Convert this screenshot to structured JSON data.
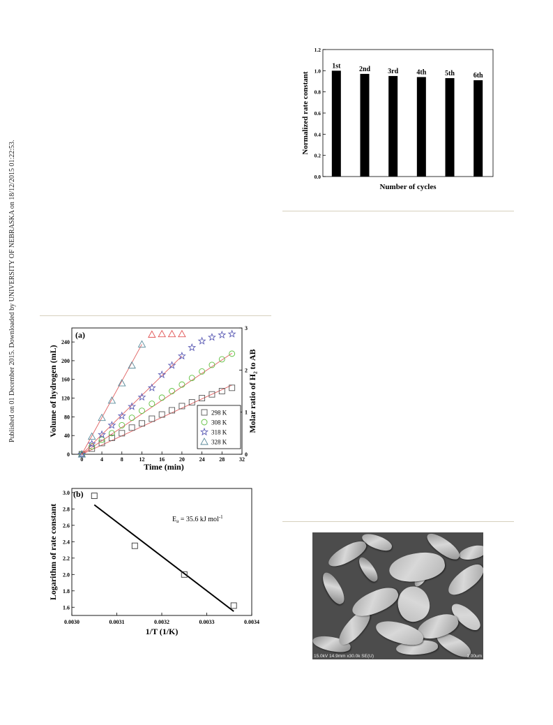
{
  "sidebar": {
    "text": "Published on 01 December 2015. Downloaded by UNIVERSITY OF NEBRASKA on 18/12/2015 01:22:53."
  },
  "chart_data": [
    {
      "type": "bar",
      "categories": [
        "1st",
        "2nd",
        "3rd",
        "4th",
        "5th",
        "6th"
      ],
      "values": [
        1.0,
        0.97,
        0.95,
        0.94,
        0.93,
        0.91
      ],
      "ylabel": "Normalized rate constant",
      "xlabel": "Number of cycles",
      "ylim": [
        0.0,
        1.2
      ],
      "yticks": [
        "0.0",
        "0.2",
        "0.4",
        "0.6",
        "0.8",
        "1.0",
        "1.2"
      ],
      "bar_color": "#000000"
    },
    {
      "type": "scatter",
      "panel_label": "(a)",
      "xlabel": "Time (min)",
      "ylabel": "Volume of hydrogen (mL)",
      "y2label": "Molar ratio of H₂ to AB",
      "xlim": [
        -2,
        32
      ],
      "ylim": [
        0,
        270
      ],
      "y2lim": [
        0,
        3
      ],
      "xticks": [
        "0",
        "4",
        "8",
        "12",
        "16",
        "20",
        "24",
        "28",
        "32"
      ],
      "yticks": [
        "0",
        "40",
        "80",
        "120",
        "160",
        "200",
        "240"
      ],
      "y2ticks": [
        "0",
        "1",
        "2",
        "3"
      ],
      "legend_position": "bottom-right",
      "fit_color": "#e06060",
      "series": [
        {
          "name": "298 K",
          "marker": "square",
          "color": "#555555",
          "x": [
            0,
            2,
            4,
            6,
            8,
            10,
            12,
            14,
            16,
            18,
            20,
            22,
            24,
            26,
            28,
            30
          ],
          "y": [
            0,
            12,
            24,
            35,
            45,
            57,
            66,
            76,
            85,
            94,
            103,
            111,
            120,
            128,
            135,
            142
          ],
          "fit": [
            [
              0,
              0
            ],
            [
              30,
              148
            ]
          ]
        },
        {
          "name": "308 K",
          "marker": "circle",
          "color": "#5cbf3c",
          "x": [
            0,
            2,
            4,
            6,
            8,
            10,
            12,
            14,
            16,
            18,
            20,
            22,
            24,
            26,
            28,
            30
          ],
          "y": [
            0,
            17,
            31,
            45,
            62,
            78,
            93,
            108,
            121,
            135,
            149,
            163,
            177,
            191,
            203,
            215
          ],
          "fit": [
            [
              0,
              0
            ],
            [
              30,
              216
            ]
          ]
        },
        {
          "name": "318 K",
          "marker": "star",
          "color": "#5a5ab4",
          "x": [
            0,
            2,
            4,
            6,
            8,
            10,
            12,
            14,
            16,
            18,
            20,
            22,
            24,
            26,
            28,
            30
          ],
          "y": [
            0,
            22,
            42,
            62,
            82,
            102,
            122,
            142,
            170,
            190,
            210,
            228,
            242,
            250,
            255,
            257
          ],
          "fit": [
            [
              0,
              0
            ],
            [
              20,
              210
            ]
          ]
        },
        {
          "name": "328 K",
          "marker": "triangle",
          "color": "#5a8a9a",
          "x": [
            0,
            2,
            4,
            6,
            8,
            10,
            12
          ],
          "y": [
            0,
            38,
            78,
            115,
            152,
            190,
            235
          ],
          "fit": [
            [
              0,
              0
            ],
            [
              12,
              235
            ]
          ]
        },
        {
          "name": "",
          "marker": "triangle",
          "color": "#e05050",
          "x": [
            14,
            16,
            18,
            20
          ],
          "y": [
            256,
            257,
            257,
            257
          ]
        }
      ]
    },
    {
      "type": "scatter",
      "panel_label": "(b)",
      "xlabel": "1/T (1/K)",
      "ylabel": "Logarithm of rate constant",
      "annotation": "Eₐ = 35.6 kJ mol⁻¹",
      "annotation_main": "E",
      "annotation_sub": "a",
      "annotation_rest": " = 35.6 kJ mol",
      "annotation_sup": "-1",
      "xlim": [
        0.003,
        0.0034
      ],
      "ylim": [
        1.5,
        3.05
      ],
      "xticks": [
        "0.0030",
        "0.0031",
        "0.0032",
        "0.0033",
        "0.0034"
      ],
      "yticks": [
        "1.6",
        "1.8",
        "2.0",
        "2.2",
        "2.4",
        "2.6",
        "2.8",
        "3.0"
      ],
      "points": {
        "x": [
          0.00305,
          0.00314,
          0.00325,
          0.00336
        ],
        "y": [
          2.96,
          2.35,
          2.0,
          1.62
        ]
      },
      "fit": [
        [
          0.00305,
          2.85
        ],
        [
          0.00336,
          1.55
        ]
      ]
    }
  ],
  "sem": {
    "caption_left": "15.0kV 14.9mm x30.0k SE(U)",
    "caption_right": "1.00um"
  }
}
